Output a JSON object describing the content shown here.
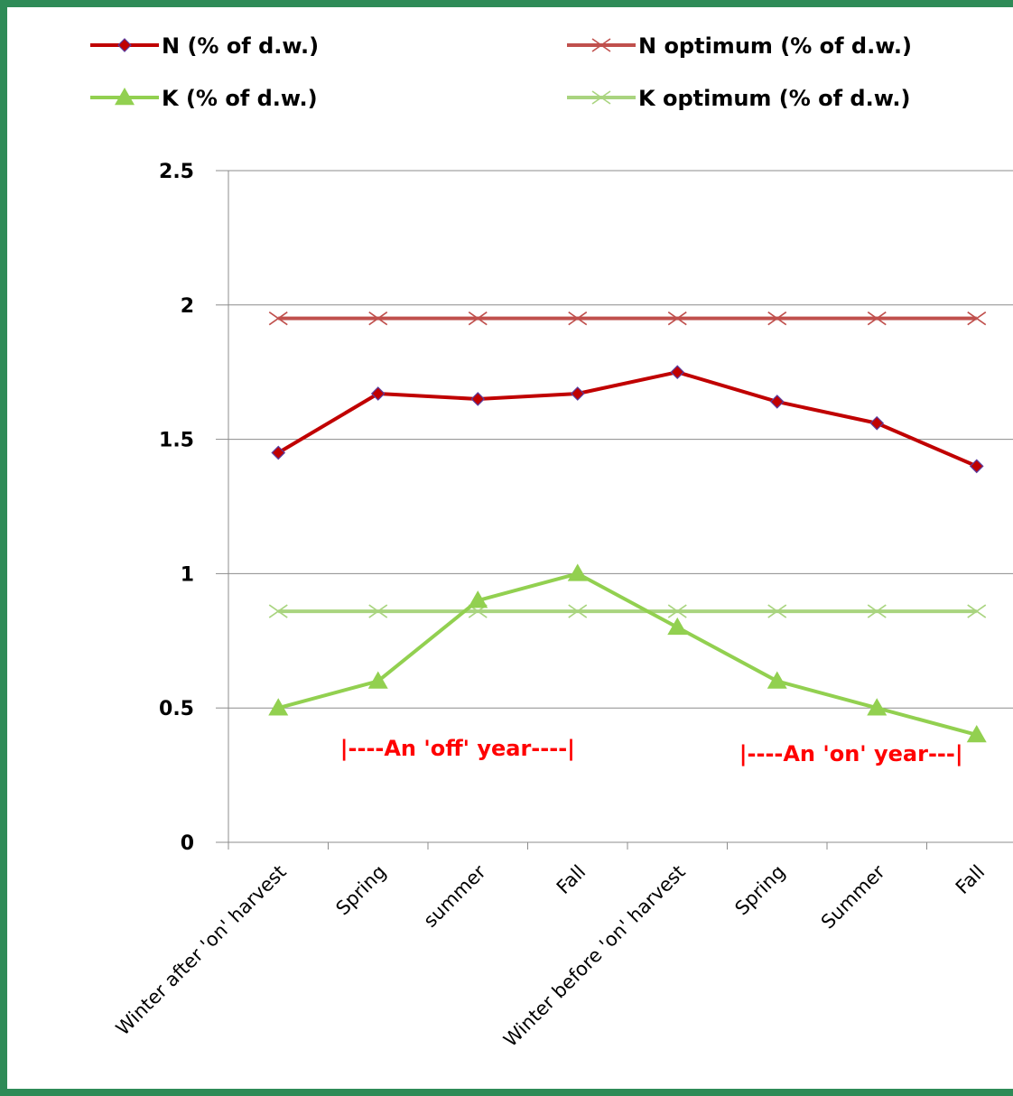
{
  "chart_data": {
    "type": "line",
    "categories": [
      "Winter after 'on' harvest",
      "Spring",
      "summer",
      "Fall",
      "Winter before 'on' harvest",
      "Spring",
      "Summer",
      "Fall"
    ],
    "series": [
      {
        "name": "N (% of d.w.)",
        "values": [
          1.45,
          1.67,
          1.65,
          1.67,
          1.75,
          1.64,
          1.56,
          1.4
        ],
        "color": "#c00000",
        "marker": "diamond"
      },
      {
        "name": "N optimum (% of d.w.)",
        "values": [
          1.95,
          1.95,
          1.95,
          1.95,
          1.95,
          1.95,
          1.95,
          1.95
        ],
        "color": "#c0504d",
        "marker": "x"
      },
      {
        "name": "K (% of d.w.)",
        "values": [
          0.5,
          0.6,
          0.9,
          1.0,
          0.8,
          0.6,
          0.5,
          0.4
        ],
        "color": "#92d050",
        "marker": "triangle"
      },
      {
        "name": "K optimum (% of d.w.)",
        "values": [
          0.86,
          0.86,
          0.86,
          0.86,
          0.86,
          0.86,
          0.86,
          0.86
        ],
        "color": "#a9d47f",
        "marker": "x"
      }
    ],
    "yticks": [
      "0",
      "0.5",
      "1",
      "1.5",
      "2",
      "2.5"
    ],
    "ylim": [
      0,
      2.5
    ],
    "grid": true,
    "legend_position": "top",
    "annotations": [
      {
        "text": "|----An 'off' year----|",
        "start_category": 1,
        "end_category": 3,
        "y": 0.35
      },
      {
        "text": "|----An 'on' year---|",
        "start_category": 5,
        "end_category": 7,
        "y": 0.33
      }
    ]
  }
}
